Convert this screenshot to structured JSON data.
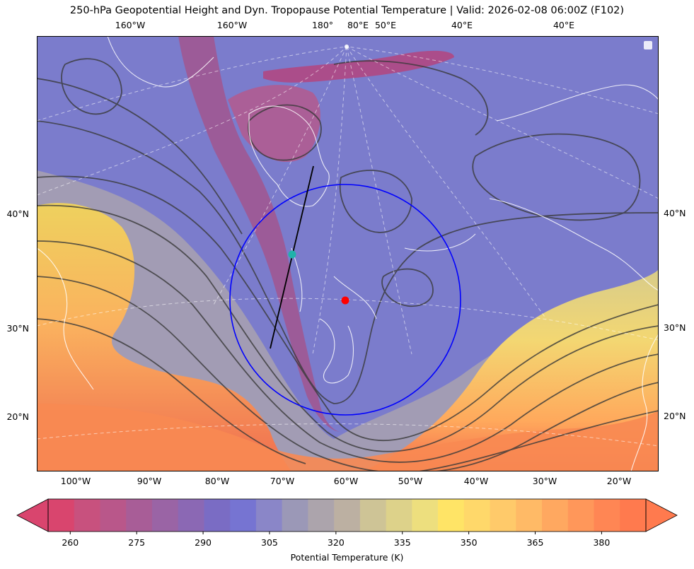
{
  "title": "250-hPa Geopotential Height and Dyn. Tropopause Potential Temperature   |  Valid: 2026-02-08 06:00Z (F102)",
  "top_lon_labels": [
    "160°W",
    "160°W",
    "180°",
    "80°E",
    "50°E",
    "40°E",
    "40°E"
  ],
  "bottom_lon_labels": [
    "100°W",
    "90°W",
    "80°W",
    "70°W",
    "60°W",
    "50°W",
    "40°W",
    "30°W",
    "20°W"
  ],
  "left_lat_labels": [
    "40°N",
    "30°N",
    "20°N"
  ],
  "right_lat_labels": [
    "40°N",
    "30°N",
    "20°N"
  ],
  "colorbar": {
    "label": "Potential Temperature (K)",
    "ticks": [
      "260",
      "275",
      "290",
      "305",
      "320",
      "335",
      "350",
      "365",
      "380"
    ],
    "min": 255,
    "max": 390,
    "step": 5,
    "extend": "both",
    "colors": [
      "#d9456e",
      "#c8517e",
      "#b9578a",
      "#a85d97",
      "#9a64a5",
      "#8b68b4",
      "#7a6cc4",
      "#7674d2",
      "#8a86c8",
      "#9b98b7",
      "#aca4ac",
      "#bcb0a2",
      "#cec496",
      "#ddd28a",
      "#eddf7e",
      "#ffe466",
      "#ffd86a",
      "#ffca6a",
      "#ffba66",
      "#ffa860",
      "#ff975a",
      "#ff8654",
      "#ff7a4e"
    ]
  },
  "overlays": {
    "circle_color": "#0000ff",
    "line_color": "#000000",
    "red_marker": "#ff0000",
    "cyan_marker": "#20b2aa"
  }
}
